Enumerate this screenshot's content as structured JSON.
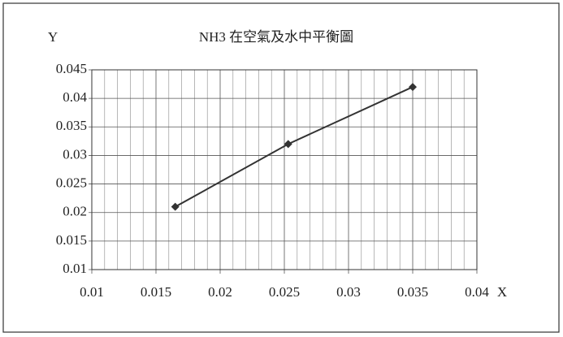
{
  "chart_data": {
    "type": "line",
    "title": "NH3  在空氣及水中平衡圖",
    "x_label": "X",
    "y_label": "Y",
    "x": [
      0.0165,
      0.0253,
      0.035
    ],
    "values": [
      0.021,
      0.032,
      0.042
    ],
    "color": "#333333",
    "xlim": [
      0.01,
      0.04
    ],
    "xticks": [
      0.01,
      0.015,
      0.02,
      0.025,
      0.03,
      0.035,
      0.04
    ],
    "ylim": [
      0.01,
      0.045
    ],
    "yticks": [
      0.01,
      0.015,
      0.02,
      0.025,
      0.03,
      0.035,
      0.04,
      0.045
    ],
    "grid": true
  }
}
